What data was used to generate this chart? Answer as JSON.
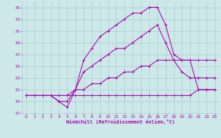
{
  "xlabel": "Windchill (Refroidissement éolien,°C)",
  "bg_color": "#cce8e8",
  "grid_color": "#aacccc",
  "line_color": "#aa00aa",
  "xlim": [
    -0.5,
    23.5
  ],
  "ylim": [
    17,
    36
  ],
  "xticks": [
    0,
    1,
    2,
    3,
    4,
    5,
    6,
    7,
    8,
    9,
    10,
    11,
    12,
    13,
    14,
    15,
    16,
    17,
    18,
    19,
    20,
    21,
    22,
    23
  ],
  "yticks": [
    17,
    19,
    21,
    23,
    25,
    27,
    29,
    31,
    33,
    35
  ],
  "series": [
    {
      "x": [
        0,
        1,
        2,
        3,
        4,
        5,
        6,
        7,
        8,
        9,
        10,
        11,
        12,
        13,
        14,
        15,
        16,
        17,
        18,
        19,
        20,
        21,
        22,
        23
      ],
      "y": [
        20,
        20,
        20,
        20,
        20,
        20,
        20,
        20,
        20,
        20,
        20,
        20,
        20,
        20,
        20,
        20,
        20,
        20,
        20,
        20,
        20,
        21,
        21,
        21
      ]
    },
    {
      "x": [
        0,
        1,
        2,
        3,
        4,
        5,
        6,
        7,
        8,
        9,
        10,
        11,
        12,
        13,
        14,
        15,
        16,
        17,
        18,
        19,
        20,
        21,
        22,
        23
      ],
      "y": [
        20,
        20,
        20,
        20,
        20,
        20,
        21,
        21,
        22,
        22,
        23,
        23,
        24,
        24,
        25,
        25,
        26,
        26,
        26,
        26,
        26,
        26,
        26,
        26
      ]
    },
    {
      "x": [
        0,
        1,
        2,
        3,
        4,
        5,
        6,
        7,
        8,
        9,
        10,
        11,
        12,
        13,
        14,
        15,
        16,
        17,
        18,
        19,
        20,
        21,
        22,
        23
      ],
      "y": [
        20,
        20,
        20,
        20,
        19,
        19,
        21,
        24,
        25,
        26,
        27,
        28,
        28,
        29,
        30,
        31,
        32,
        29,
        26,
        24,
        23,
        23,
        23,
        23
      ]
    },
    {
      "x": [
        0,
        1,
        2,
        3,
        4,
        5,
        6,
        7,
        8,
        9,
        10,
        11,
        12,
        13,
        14,
        15,
        16,
        17,
        18,
        19,
        20,
        21,
        22,
        23
      ],
      "y": [
        20,
        20,
        20,
        20,
        19,
        18,
        21,
        26,
        28,
        30,
        31,
        32,
        33,
        34,
        34,
        35,
        35,
        32,
        27,
        26,
        26,
        21,
        21,
        21
      ]
    }
  ]
}
